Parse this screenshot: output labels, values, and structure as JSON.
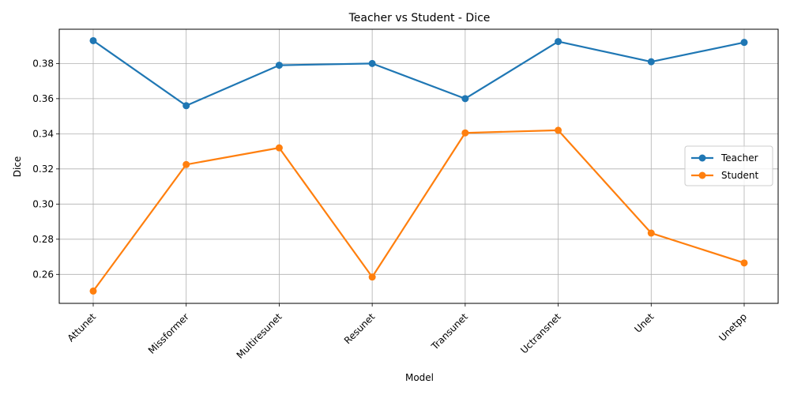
{
  "chart_data": {
    "type": "line",
    "title": "Teacher vs Student - Dice",
    "xlabel": "Model",
    "ylabel": "Dice",
    "categories": [
      "Attunet",
      "Missformer",
      "Multiresunet",
      "Resunet",
      "Transunet",
      "Uctransnet",
      "Unet",
      "Unetpp"
    ],
    "series": [
      {
        "name": "Teacher",
        "color": "#1f77b4",
        "values": [
          0.393,
          0.356,
          0.379,
          0.38,
          0.36,
          0.3925,
          0.381,
          0.392
        ]
      },
      {
        "name": "Student",
        "color": "#ff7f0e",
        "values": [
          0.2505,
          0.3225,
          0.332,
          0.2585,
          0.3405,
          0.342,
          0.2835,
          0.2665
        ]
      }
    ],
    "ylim": [
      0.2435,
      0.3995
    ],
    "yticks": [
      0.26,
      0.28,
      0.3,
      0.32,
      0.34,
      0.36,
      0.38
    ],
    "ytick_labels": [
      "0.26",
      "0.28",
      "0.30",
      "0.32",
      "0.34",
      "0.36",
      "0.38"
    ],
    "grid": true,
    "legend_position": "center-right",
    "marker": "circle"
  }
}
